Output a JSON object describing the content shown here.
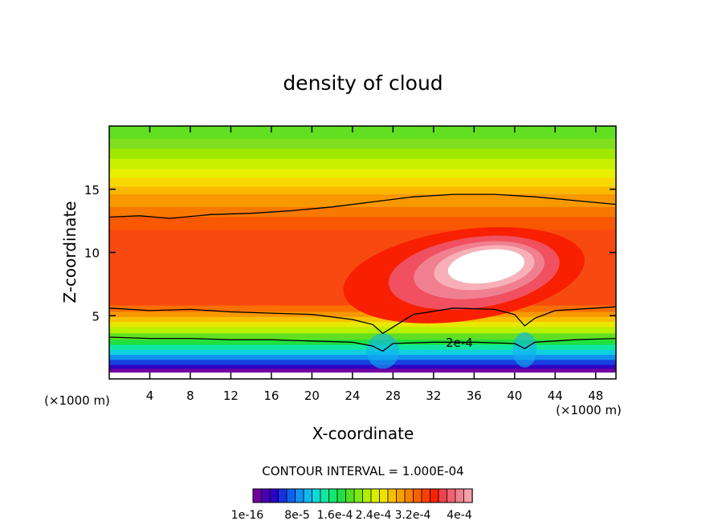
{
  "chart_data": {
    "type": "heatmap",
    "title": "density of cloud",
    "xlabel": "X-coordinate",
    "ylabel": "Z-coordinate",
    "x_unit": "(×1000 m)",
    "y_unit": "(×1000 m)",
    "xlim": [
      0,
      50
    ],
    "ylim": [
      0,
      20
    ],
    "x_ticks": [
      4,
      8,
      12,
      16,
      20,
      24,
      28,
      32,
      36,
      40,
      44,
      48
    ],
    "y_ticks": [
      5,
      10,
      15
    ],
    "contour_label": "2e-4",
    "contour_interval_text": "CONTOUR INTERVAL = 1.000E-04",
    "colorbar": {
      "labels": [
        "1e-16",
        "8e-5",
        "1.6e-4",
        "2.4e-4",
        "3.2e-4",
        "4e-4"
      ],
      "colors": [
        "#7000a0",
        "#4800b0",
        "#2800c8",
        "#1830e0",
        "#1060f0",
        "#1090f0",
        "#10b8f0",
        "#10d8d8",
        "#10e8a0",
        "#10e870",
        "#20e040",
        "#50e020",
        "#80e810",
        "#b0f000",
        "#d8f000",
        "#f0e000",
        "#f8c000",
        "#f8a000",
        "#f88000",
        "#f86000",
        "#f84000",
        "#f82000",
        "#f04050",
        "#f06070",
        "#f08090",
        "#f8a0a8"
      ]
    },
    "layers": [
      {
        "top": 20.0,
        "color": "#60e020"
      },
      {
        "top": 19.0,
        "color": "#80e020"
      },
      {
        "top": 18.2,
        "color": "#a0e800"
      },
      {
        "top": 17.4,
        "color": "#c8f000"
      },
      {
        "top": 16.6,
        "color": "#e8f000"
      },
      {
        "top": 15.9,
        "color": "#f8d800"
      },
      {
        "top": 15.2,
        "color": "#f8b800"
      },
      {
        "top": 14.6,
        "color": "#f89800"
      },
      {
        "top": 13.6,
        "color": "#f87800"
      },
      {
        "top": 12.8,
        "color": "#f85800"
      },
      {
        "top": 11.8,
        "color": "#f84a10"
      },
      {
        "top": 5.8,
        "color": "#f87000"
      },
      {
        "top": 5.3,
        "color": "#f89800"
      },
      {
        "top": 4.9,
        "color": "#f8c000"
      },
      {
        "top": 4.5,
        "color": "#e8e800"
      },
      {
        "top": 4.1,
        "color": "#b8f000"
      },
      {
        "top": 3.6,
        "color": "#60e020"
      },
      {
        "top": 3.1,
        "color": "#20e040"
      },
      {
        "top": 2.7,
        "color": "#10e8a0"
      },
      {
        "top": 2.3,
        "color": "#10d0e0"
      },
      {
        "top": 1.9,
        "color": "#1090f0"
      },
      {
        "top": 1.5,
        "color": "#1840e0"
      },
      {
        "top": 1.1,
        "color": "#3000c0"
      },
      {
        "top": 0.8,
        "color": "#7000a0"
      },
      {
        "top": 0.5,
        "color": "#ffffff"
      }
    ],
    "core_blobs": [
      {
        "cx": 35,
        "cy": 8.2,
        "rx": 12,
        "ry": 3.6,
        "color": "#f82000"
      },
      {
        "cx": 36,
        "cy": 8.4,
        "rx": 8.5,
        "ry": 2.8,
        "color": "#f05060"
      },
      {
        "cx": 36.5,
        "cy": 8.6,
        "rx": 6.5,
        "ry": 2.2,
        "color": "#f08090"
      },
      {
        "cx": 37,
        "cy": 8.8,
        "rx": 5.0,
        "ry": 1.7,
        "color": "#f8b0b8"
      },
      {
        "cx": 37.2,
        "cy": 8.9,
        "rx": 3.8,
        "ry": 1.3,
        "color": "#ffffff"
      }
    ],
    "upper_contour": [
      [
        0,
        12.8
      ],
      [
        3,
        12.9
      ],
      [
        6,
        12.7
      ],
      [
        10,
        13.0
      ],
      [
        14,
        13.1
      ],
      [
        18,
        13.3
      ],
      [
        22,
        13.6
      ],
      [
        26,
        14.0
      ],
      [
        30,
        14.4
      ],
      [
        34,
        14.6
      ],
      [
        38,
        14.6
      ],
      [
        42,
        14.4
      ],
      [
        46,
        14.1
      ],
      [
        50,
        13.8
      ]
    ],
    "mid_contour": [
      [
        0,
        5.6
      ],
      [
        4,
        5.4
      ],
      [
        8,
        5.5
      ],
      [
        12,
        5.3
      ],
      [
        16,
        5.2
      ],
      [
        20,
        5.1
      ],
      [
        24,
        4.7
      ],
      [
        26,
        4.3
      ],
      [
        27,
        3.6
      ],
      [
        28,
        4.1
      ],
      [
        30,
        5.1
      ],
      [
        34,
        5.6
      ],
      [
        38,
        5.5
      ],
      [
        40,
        5.1
      ],
      [
        41,
        4.2
      ],
      [
        42,
        4.8
      ],
      [
        44,
        5.4
      ],
      [
        48,
        5.6
      ],
      [
        50,
        5.7
      ]
    ],
    "low_contour": [
      [
        0,
        3.3
      ],
      [
        4,
        3.2
      ],
      [
        8,
        3.2
      ],
      [
        12,
        3.1
      ],
      [
        16,
        3.1
      ],
      [
        20,
        3.0
      ],
      [
        24,
        2.9
      ],
      [
        26,
        2.6
      ],
      [
        27,
        2.2
      ],
      [
        28,
        2.8
      ],
      [
        32,
        2.9
      ],
      [
        36,
        2.9
      ],
      [
        40,
        2.8
      ],
      [
        41,
        2.4
      ],
      [
        42,
        2.9
      ],
      [
        46,
        3.1
      ],
      [
        50,
        3.2
      ]
    ]
  }
}
